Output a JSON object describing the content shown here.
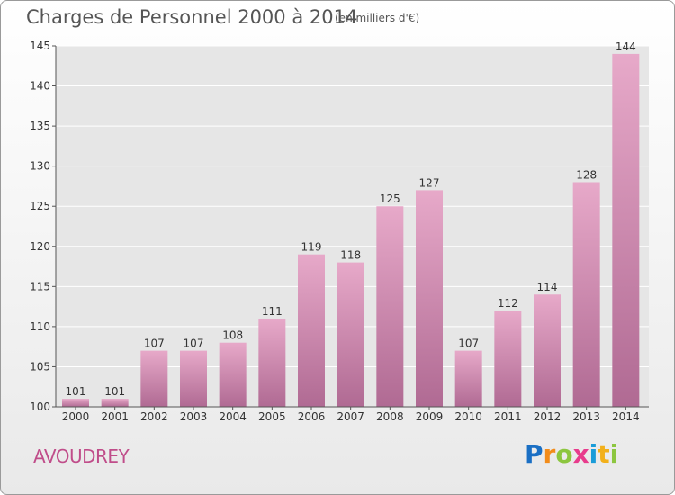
{
  "title": "Charges de Personnel 2000 à 2014",
  "subtitle": "(en milliers d'€)",
  "place": "AVOUDREY",
  "logo": {
    "letters": [
      "P",
      "r",
      "o",
      "x",
      "i",
      "t",
      "i"
    ],
    "colors": [
      "#1a6fc4",
      "#f28c1a",
      "#8cc63f",
      "#e83c8c",
      "#1a9cd8",
      "#f2b01a",
      "#8cc63f"
    ]
  },
  "colors": {
    "bar": "#d98bb5",
    "bar_dark": "#b56b95",
    "grid": "#ffffff"
  },
  "chart_data": {
    "type": "bar",
    "title": "Charges de Personnel 2000 à 2014",
    "subtitle": "(en milliers d'€)",
    "categories": [
      "2000",
      "2001",
      "2002",
      "2003",
      "2004",
      "2005",
      "2006",
      "2007",
      "2008",
      "2009",
      "2010",
      "2011",
      "2012",
      "2013",
      "2014"
    ],
    "values": [
      101,
      101,
      107,
      107,
      108,
      111,
      119,
      118,
      125,
      127,
      107,
      112,
      114,
      128,
      144
    ],
    "ylim": [
      100,
      145
    ],
    "yticks": [
      100,
      105,
      110,
      115,
      120,
      125,
      130,
      135,
      140,
      145
    ],
    "grid": true,
    "xlabel": "",
    "ylabel": ""
  }
}
